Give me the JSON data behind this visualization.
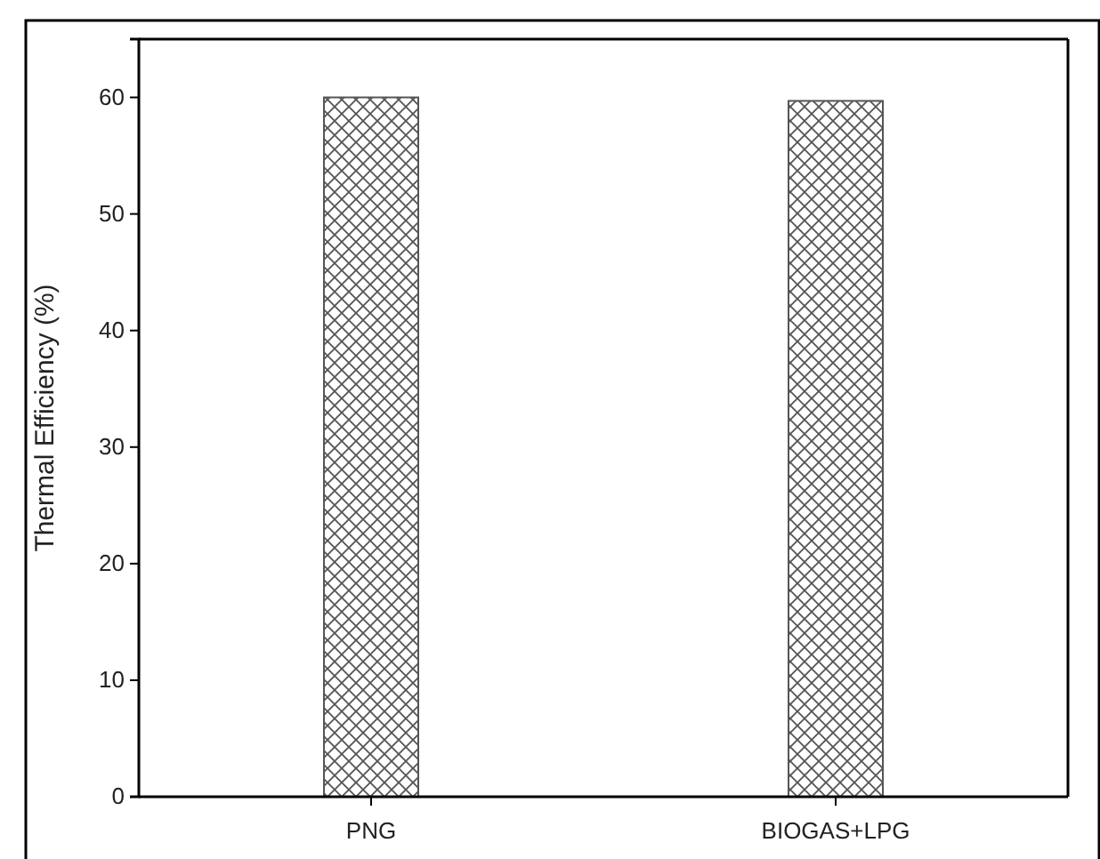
{
  "chart_data": {
    "type": "bar",
    "ylabel": "Thermal Efficiency (%)",
    "categories": [
      "PNG",
      "BIOGAS+LPG"
    ],
    "values": [
      60,
      59.7
    ],
    "color": "#555555",
    "ylim": [
      0,
      65
    ],
    "yticks": [
      0,
      10,
      20,
      30,
      40,
      50,
      60
    ],
    "grid": false
  }
}
